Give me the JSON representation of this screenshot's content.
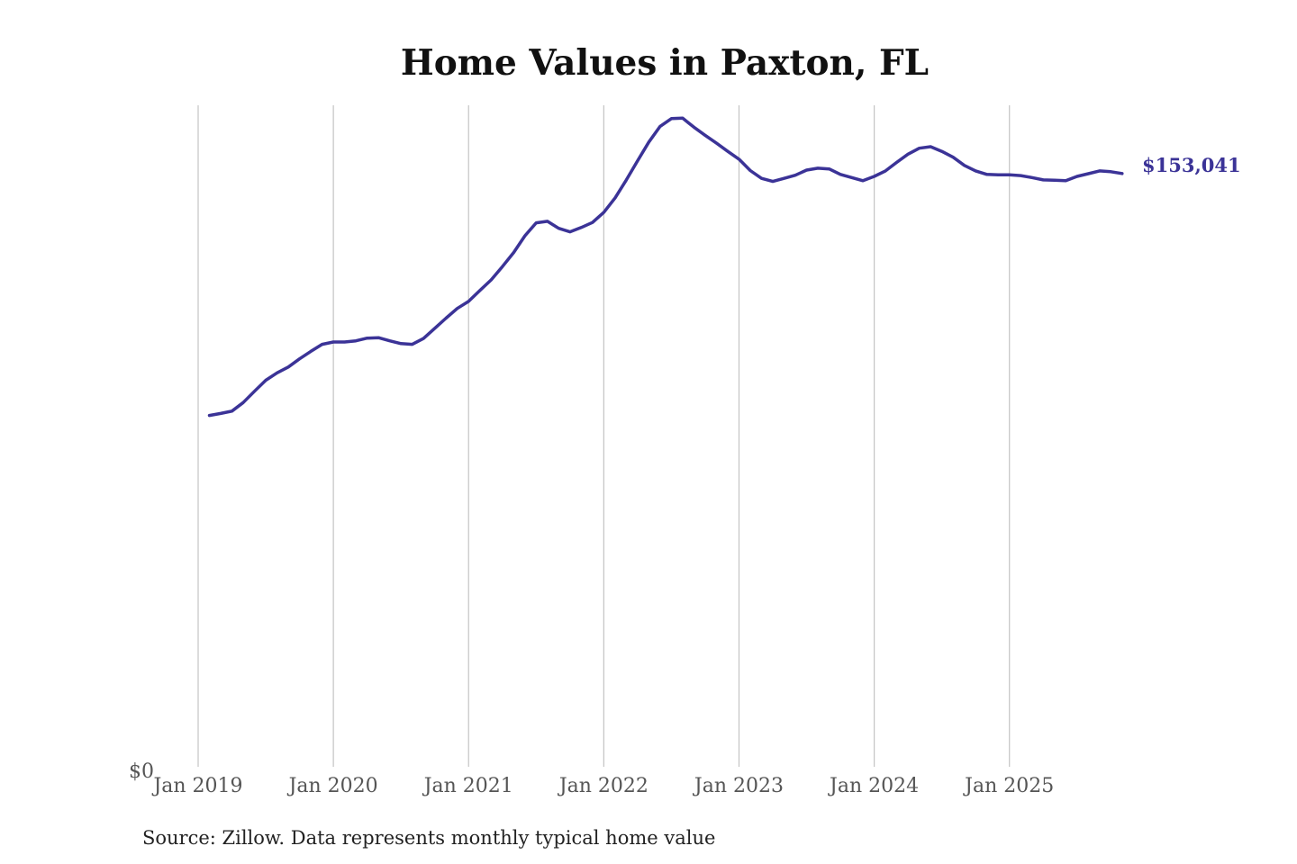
{
  "chart_data": {
    "type": "line",
    "title": "Home Values in Paxton, FL",
    "source": "Source: Zillow. Data represents monthly typical home value",
    "xlabel": "",
    "ylabel": "",
    "ylim": [
      0,
      170500
    ],
    "y_tick_labels": [
      {
        "value": 0,
        "label": "$0"
      }
    ],
    "x_tick_labels": [
      {
        "date": "2019-01",
        "label": "Jan 2019"
      },
      {
        "date": "2020-01",
        "label": "Jan 2020"
      },
      {
        "date": "2021-01",
        "label": "Jan 2021"
      },
      {
        "date": "2022-01",
        "label": "Jan 2022"
      },
      {
        "date": "2023-01",
        "label": "Jan 2023"
      },
      {
        "date": "2024-01",
        "label": "Jan 2024"
      },
      {
        "date": "2025-01",
        "label": "Jan 2025"
      }
    ],
    "grid": "vertical",
    "line_color": "#3b3397",
    "end_label": "$153,041",
    "series": [
      {
        "x": [
          "2019-02",
          "2019-03",
          "2019-04",
          "2019-05",
          "2019-06",
          "2019-07",
          "2019-08",
          "2019-09",
          "2019-10",
          "2019-11",
          "2019-12",
          "2020-01",
          "2020-02",
          "2020-03",
          "2020-04",
          "2020-05",
          "2020-06",
          "2020-07",
          "2020-08",
          "2020-09",
          "2020-10",
          "2020-11",
          "2020-12",
          "2021-01",
          "2021-02",
          "2021-03",
          "2021-04",
          "2021-05",
          "2021-06",
          "2021-07",
          "2021-08",
          "2021-09",
          "2021-10",
          "2021-11",
          "2021-12",
          "2022-01",
          "2022-02",
          "2022-03",
          "2022-04",
          "2022-05",
          "2022-06",
          "2022-07",
          "2022-08",
          "2022-09",
          "2022-10",
          "2022-11",
          "2022-12",
          "2023-01",
          "2023-02",
          "2023-03",
          "2023-04",
          "2023-05",
          "2023-06",
          "2023-07",
          "2023-08",
          "2023-09",
          "2023-10",
          "2023-11",
          "2023-12",
          "2024-01",
          "2024-02",
          "2024-03",
          "2024-04",
          "2024-05",
          "2024-06",
          "2024-07",
          "2024-08",
          "2024-09",
          "2024-10",
          "2024-11",
          "2024-12",
          "2025-01",
          "2025-02",
          "2025-03",
          "2025-04",
          "2025-05",
          "2025-06",
          "2025-07",
          "2025-08",
          "2025-09",
          "2025-10",
          "2025-11"
        ],
        "values": [
          91100,
          91600,
          92200,
          94400,
          97300,
          100100,
          102000,
          103500,
          105600,
          107500,
          109300,
          109900,
          109900,
          110200,
          110900,
          111000,
          110200,
          109500,
          109300,
          110800,
          113400,
          116000,
          118500,
          120300,
          123100,
          125800,
          129200,
          132800,
          137100,
          140400,
          140800,
          139000,
          138100,
          139200,
          140500,
          143100,
          146800,
          151400,
          156300,
          161100,
          165100,
          167100,
          167200,
          164900,
          162800,
          160800,
          158700,
          156700,
          153800,
          151800,
          151000,
          151800,
          152600,
          153900,
          154400,
          154200,
          152800,
          152000,
          151200,
          152300,
          153700,
          155900,
          158000,
          159500,
          159900,
          158700,
          157200,
          155100,
          153700,
          152800,
          152700,
          152700,
          152500,
          152000,
          151400,
          151300,
          151200,
          152300,
          153000,
          153700,
          153500,
          153041
        ]
      }
    ]
  }
}
